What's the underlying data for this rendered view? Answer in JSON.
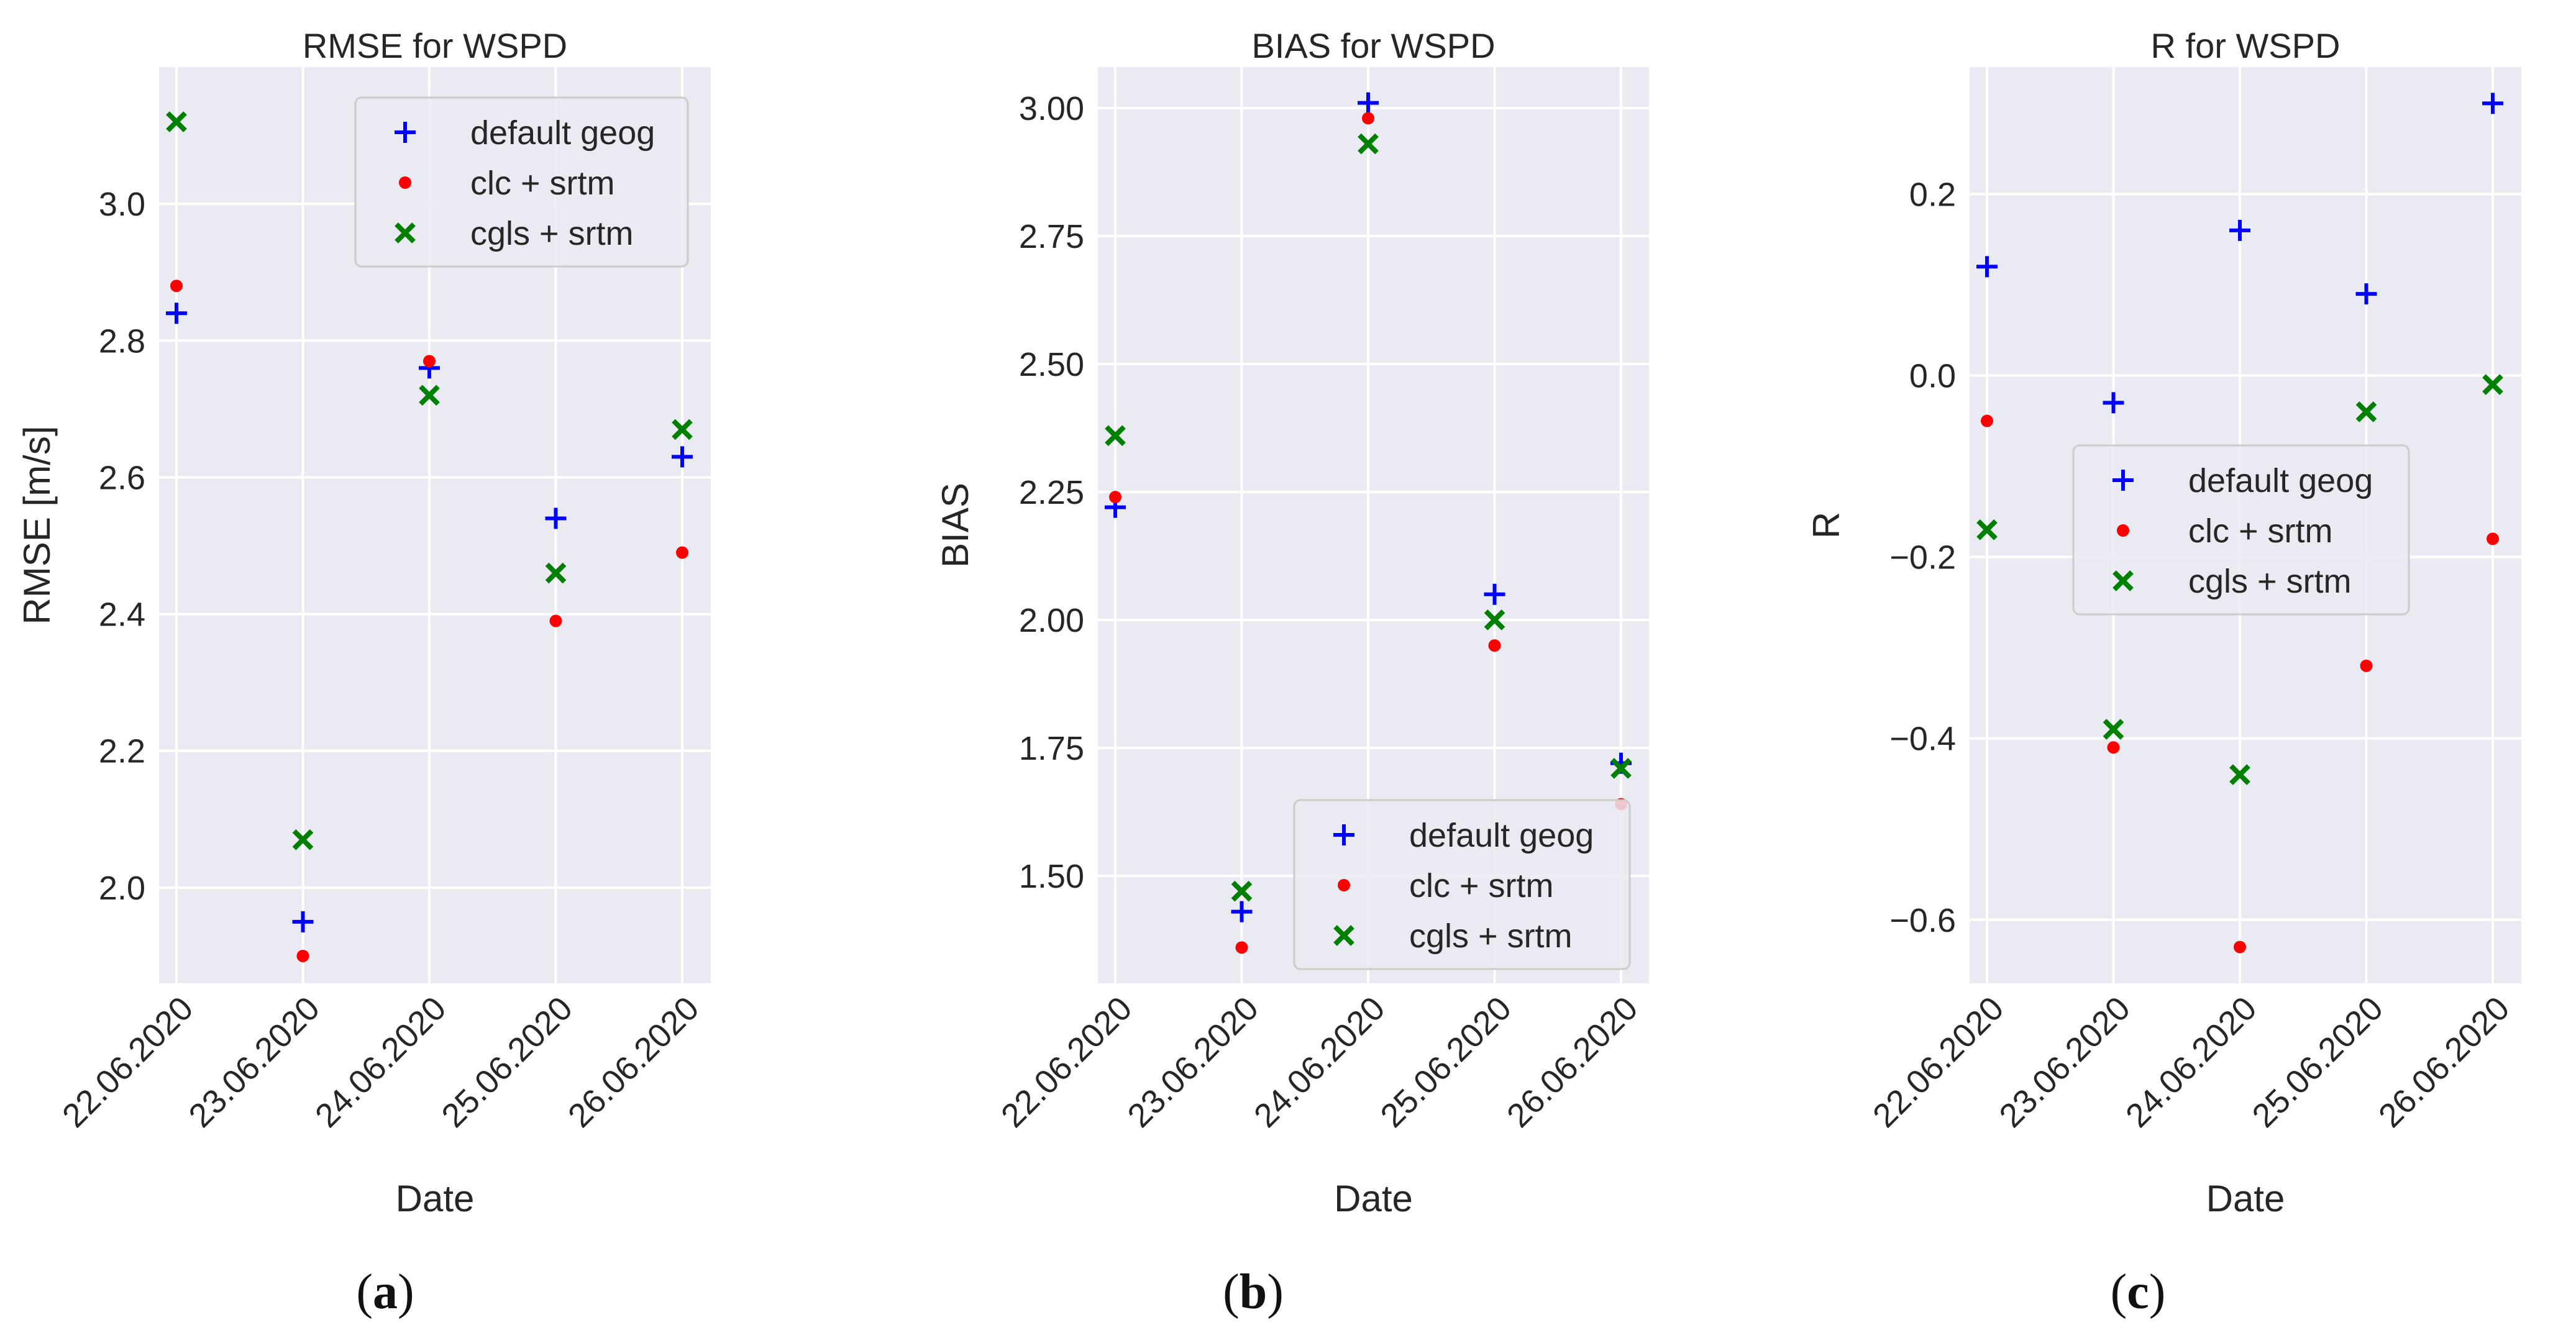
{
  "chart_data": [
    {
      "type": "scatter",
      "title": "RMSE for WSPD",
      "xlabel": "Date",
      "ylabel": "RMSE [m/s]",
      "categories": [
        "22.06.2020",
        "23.06.2020",
        "24.06.2020",
        "25.06.2020",
        "26.06.2020"
      ],
      "ylim": [
        1.86,
        3.2
      ],
      "yticks": [
        2.0,
        2.2,
        2.4,
        2.6,
        2.8,
        3.0
      ],
      "ytick_labels": [
        "2.0",
        "2.2",
        "2.4",
        "2.6",
        "2.8",
        "3.0"
      ],
      "legend_position": "top-right",
      "series": [
        {
          "name": "default geog",
          "marker": "plus",
          "color": "#0000ff",
          "values": [
            2.84,
            1.95,
            2.76,
            2.54,
            2.63
          ]
        },
        {
          "name": "clc + srtm",
          "marker": "dot",
          "color": "#ff0000",
          "values": [
            2.88,
            1.9,
            2.77,
            2.39,
            2.49
          ]
        },
        {
          "name": "cgls + srtm",
          "marker": "x",
          "color": "#008000",
          "values": [
            3.12,
            2.07,
            2.72,
            2.46,
            2.67
          ]
        }
      ],
      "panel_label": "a"
    },
    {
      "type": "scatter",
      "title": "BIAS for WSPD",
      "xlabel": "Date",
      "ylabel": "BIAS",
      "categories": [
        "22.06.2020",
        "23.06.2020",
        "24.06.2020",
        "25.06.2020",
        "26.06.2020"
      ],
      "ylim": [
        1.29,
        3.08
      ],
      "yticks": [
        1.5,
        1.75,
        2.0,
        2.25,
        2.5,
        2.75,
        3.0
      ],
      "ytick_labels": [
        "1.50",
        "1.75",
        "2.00",
        "2.25",
        "2.50",
        "2.75",
        "3.00"
      ],
      "legend_position": "bottom-right",
      "series": [
        {
          "name": "default geog",
          "marker": "plus",
          "color": "#0000ff",
          "values": [
            2.22,
            1.43,
            3.01,
            2.05,
            1.72
          ]
        },
        {
          "name": "clc + srtm",
          "marker": "dot",
          "color": "#ff0000",
          "values": [
            2.24,
            1.36,
            2.98,
            1.95,
            1.64
          ]
        },
        {
          "name": "cgls + srtm",
          "marker": "x",
          "color": "#008000",
          "values": [
            2.36,
            1.47,
            2.93,
            2.0,
            1.71
          ]
        }
      ],
      "panel_label": "b"
    },
    {
      "type": "scatter",
      "title": "R for WSPD",
      "xlabel": "Date",
      "ylabel": "R",
      "categories": [
        "22.06.2020",
        "23.06.2020",
        "24.06.2020",
        "25.06.2020",
        "26.06.2020"
      ],
      "ylim": [
        -0.67,
        0.34
      ],
      "yticks": [
        -0.6,
        -0.4,
        -0.2,
        0.0,
        0.2
      ],
      "ytick_labels": [
        "−0.6",
        "−0.4",
        "−0.2",
        "0.0",
        "0.2"
      ],
      "legend_position": "center",
      "series": [
        {
          "name": "default geog",
          "marker": "plus",
          "color": "#0000ff",
          "values": [
            0.12,
            -0.03,
            0.16,
            0.09,
            0.3
          ]
        },
        {
          "name": "clc + srtm",
          "marker": "dot",
          "color": "#ff0000",
          "values": [
            -0.05,
            -0.41,
            -0.63,
            -0.32,
            -0.18
          ]
        },
        {
          "name": "cgls + srtm",
          "marker": "x",
          "color": "#008000",
          "values": [
            -0.17,
            -0.39,
            -0.44,
            -0.04,
            -0.01
          ]
        }
      ],
      "panel_label": "c"
    }
  ]
}
